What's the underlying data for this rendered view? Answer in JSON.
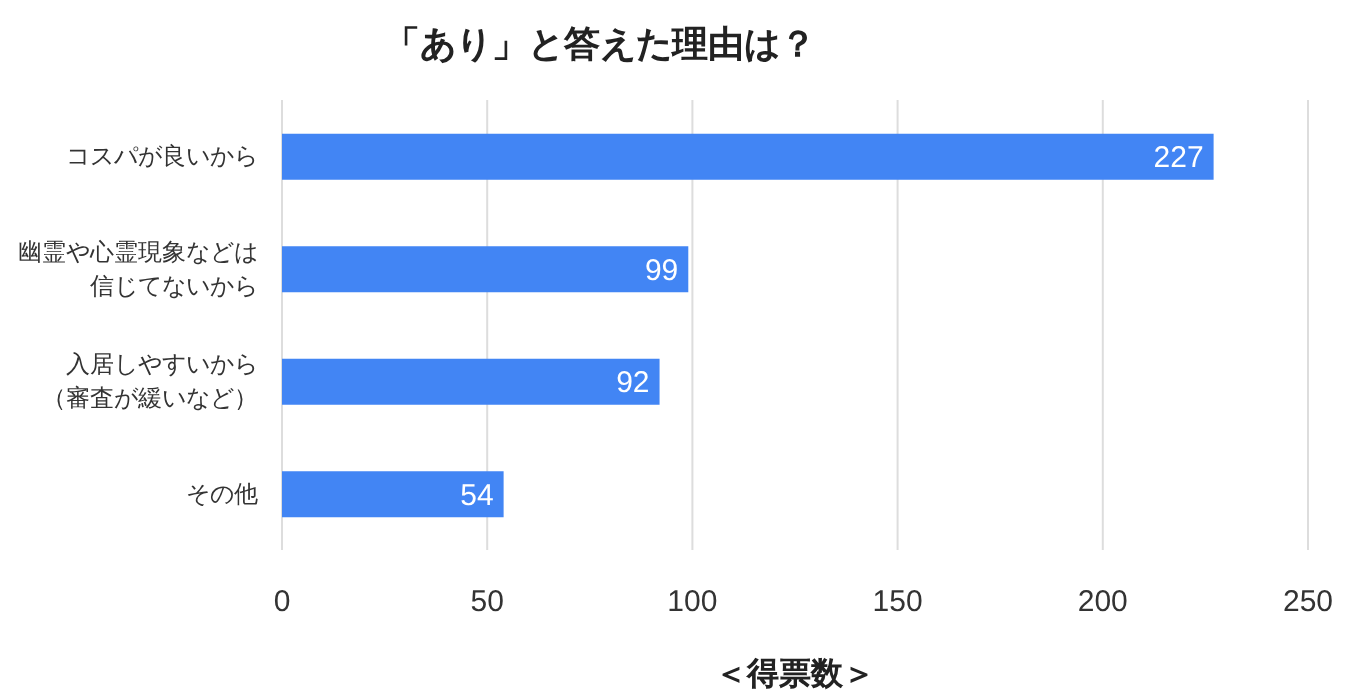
{
  "chart_data": {
    "type": "bar",
    "orientation": "horizontal",
    "title": "「あり」と答えた理由は？",
    "xlabel": "＜得票数＞",
    "categories": [
      "コスパが良いから",
      "幽霊や心霊現象などは信じてないから",
      "入居しやすいから（審査が緩いなど）",
      "その他"
    ],
    "values": [
      227,
      99,
      92,
      54
    ],
    "color": "#4285f4",
    "xlim": [
      0,
      250
    ],
    "xticks": [
      0,
      50,
      100,
      150,
      200,
      250
    ],
    "grid": "x",
    "data_labels": true
  }
}
